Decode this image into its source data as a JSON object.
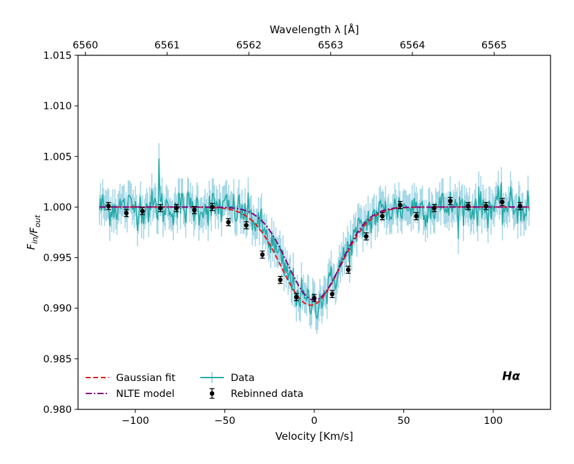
{
  "chart_data": {
    "type": "line",
    "title": "",
    "annotation": "Hα",
    "xlabel": "Velocity [Km/s]",
    "ylabel": "F_in/F_out",
    "top_xlabel": "Wavelength λ [Å]",
    "xlim": [
      -132,
      132
    ],
    "ylim": [
      0.98,
      1.015
    ],
    "x_ticks": [
      -100,
      -50,
      0,
      50,
      100
    ],
    "x_tick_labels": [
      "−100",
      "−50",
      "0",
      "50",
      "100"
    ],
    "y_ticks": [
      0.98,
      0.985,
      0.99,
      0.995,
      1.0,
      1.005,
      1.01,
      1.015
    ],
    "y_tick_labels": [
      "0.980",
      "0.985",
      "0.990",
      "0.995",
      "1.000",
      "1.005",
      "1.010",
      "1.015"
    ],
    "top_x_ticks": [
      6560,
      6561,
      6562,
      6563,
      6564,
      6565
    ],
    "top_x_tick_labels": [
      "6560",
      "6561",
      "6562",
      "6563",
      "6564",
      "6565"
    ],
    "top_axis_line_center_wavelength": 6562.8,
    "speed_of_light_kms": 299792.458,
    "grid": false,
    "legend": {
      "placement": "lower-left",
      "entries": [
        {
          "label": "Gaussian fit",
          "style": "dashed",
          "color": "#e8141b"
        },
        {
          "label": "NLTE model",
          "style": "dashdot",
          "color": "#800080"
        },
        {
          "label": "Data",
          "style": "line-with-errorbar",
          "color": "#22aaa6"
        },
        {
          "label": "Rebinned data",
          "style": "errorbar-point",
          "color": "#000000"
        }
      ]
    },
    "colors": {
      "data": "#22aaa6",
      "data_error": "#a6d7e6",
      "gaussian_fit": "#e8141b",
      "nlte_model": "#800080",
      "rebinned": "#000000"
    },
    "series": [
      {
        "name": "Gaussian fit",
        "model": "gaussian",
        "baseline": 1.0,
        "depth": 0.0097,
        "center": -2.0,
        "sigma": 16.5,
        "x_range": [
          -120,
          120
        ]
      },
      {
        "name": "NLTE model",
        "model": "gaussian",
        "baseline": 1.0,
        "depth": 0.0092,
        "center": 0.0,
        "sigma": 15.0,
        "x_range": [
          -120,
          120
        ]
      },
      {
        "name": "Data",
        "x_range": [
          -120,
          120
        ],
        "n_points": 420,
        "underlying_depth": 0.0095,
        "underlying_center": -1.5,
        "underlying_sigma": 16.0,
        "noise_sigma": 0.0009,
        "error_bar": 0.0015,
        "spikes": [
          {
            "x": -87.0,
            "y": 1.0048
          }
        ]
      },
      {
        "name": "Rebinned data",
        "x": [
          -115,
          -105,
          -96,
          -86,
          -77,
          -67,
          -57,
          -48,
          -38,
          -29,
          -19,
          -10,
          0,
          10,
          19,
          29,
          38,
          48,
          57,
          67,
          76,
          86,
          96,
          105,
          115
        ],
        "y": [
          1.0001,
          0.9994,
          0.9996,
          0.9999,
          0.9999,
          0.9997,
          1.0,
          0.9985,
          0.9982,
          0.9953,
          0.9928,
          0.9911,
          0.991,
          0.9914,
          0.9938,
          0.9971,
          0.9991,
          1.0002,
          0.9991,
          0.9999,
          1.0006,
          1.0001,
          1.0001,
          1.0005,
          1.0001
        ],
        "yerr": 0.00035
      }
    ]
  }
}
